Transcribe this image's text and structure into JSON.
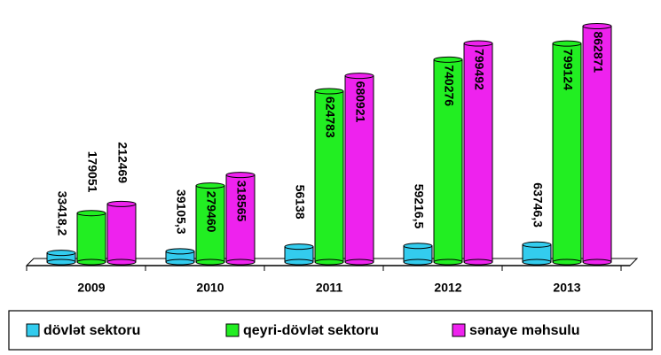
{
  "chart_data": {
    "type": "bar",
    "categories": [
      "2009",
      "2010",
      "2011",
      "2012",
      "2013"
    ],
    "series": [
      {
        "name": "dövlət sektoru",
        "color": "#33ccee",
        "values": [
          33418.2,
          39105.3,
          56138,
          59216.5,
          63746.3
        ],
        "value_labels": [
          "33418,2",
          "39105,3",
          "56138",
          "59216,5",
          "63746,3"
        ]
      },
      {
        "name": "qeyri-dövlət sektoru",
        "color": "#22ee22",
        "values": [
          179051,
          279460,
          624783,
          740276,
          799124
        ]
      },
      {
        "name": "sənaye məhsulu",
        "color": "#ee22ee",
        "values": [
          212469,
          318565,
          680921,
          799492,
          862871
        ]
      }
    ],
    "ylim": [
      0,
      900000
    ],
    "legend": "bottom"
  }
}
